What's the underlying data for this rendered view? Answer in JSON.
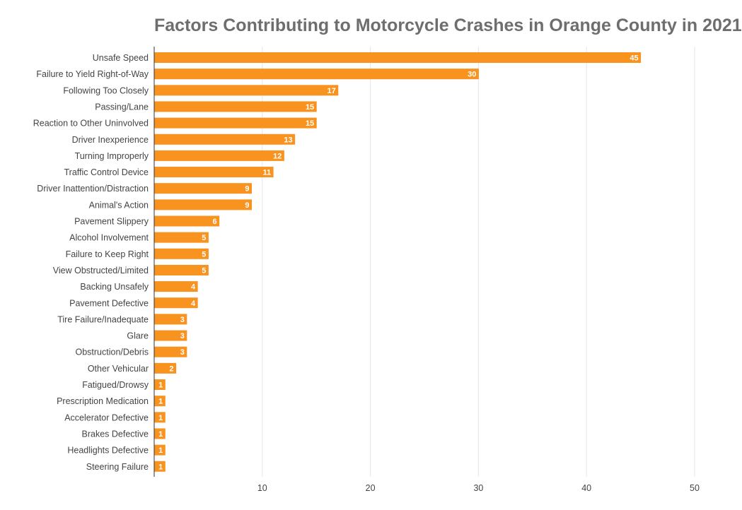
{
  "chart_data": {
    "type": "bar",
    "orientation": "horizontal",
    "title": "Factors Contributing to Motorcycle Crashes in Orange County in 2021",
    "xlabel": "",
    "ylabel": "",
    "xlim": [
      0,
      50
    ],
    "xticks": [
      10,
      20,
      30,
      40,
      50
    ],
    "grid": "vertical",
    "legend": "none",
    "bar_color": "#f7931e",
    "categories": [
      "Unsafe Speed",
      "Failure to Yield Right-of-Way",
      "Following Too Closely",
      "Passing/Lane",
      "Reaction to Other Uninvolved",
      "Driver Inexperience",
      "Turning Improperly",
      "Traffic Control Device",
      "Driver Inattention/Distraction",
      "Animal's Action",
      "Pavement Slippery",
      "Alcohol Involvement",
      "Failure to Keep Right",
      "View Obstructed/Limited",
      "Backing Unsafely",
      "Pavement Defective",
      "Tire Failure/Inadequate",
      "Glare",
      "Obstruction/Debris",
      "Other Vehicular",
      "Fatigued/Drowsy",
      "Prescription Medication",
      "Accelerator Defective",
      "Brakes Defective",
      "Headlights Defective",
      "Steering Failure"
    ],
    "values": [
      45,
      30,
      17,
      15,
      15,
      13,
      12,
      11,
      9,
      9,
      6,
      5,
      5,
      5,
      4,
      4,
      3,
      3,
      3,
      2,
      1,
      1,
      1,
      1,
      1,
      1
    ]
  }
}
